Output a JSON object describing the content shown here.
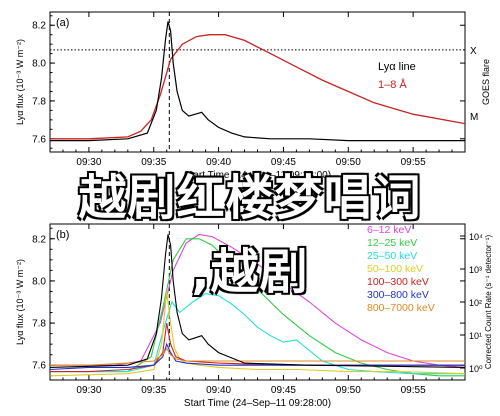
{
  "chart_data": [
    {
      "type": "line",
      "panel_label": "(a)",
      "ylabel": "Lyα flux (10⁻³ W m⁻²)",
      "y2label": "GOES flare",
      "y2_ticks": [
        "X",
        "M"
      ],
      "xlabel": "Start Time (24–Sep–11 09:28:00)",
      "xticks": [
        "09:30",
        "09:35",
        "09:40",
        "09:45",
        "09:50",
        "09:55"
      ],
      "xlim_min": [
        27,
        59
      ],
      "yticks": [
        "7.6",
        "7.8",
        "8.0",
        "8.2"
      ],
      "ylim": [
        7.53,
        8.27
      ],
      "vline_min": 36.2,
      "hline_value": 8.07,
      "legend": [
        "Lyα line",
        "1–8 Å"
      ],
      "colors": {
        "lya": "#000000",
        "goes": "#cc2222"
      },
      "series": [
        {
          "name": "Lyα line",
          "x": [
            27,
            30,
            33,
            34.5,
            35.2,
            35.6,
            35.9,
            36.1,
            36.3,
            36.5,
            36.8,
            37.2,
            37.7,
            38.2,
            38.7,
            39.2,
            40,
            41,
            42,
            44,
            47,
            50,
            55,
            59
          ],
          "y": [
            7.59,
            7.59,
            7.6,
            7.63,
            7.75,
            7.92,
            8.12,
            8.22,
            8.17,
            8.0,
            7.85,
            7.75,
            7.72,
            7.73,
            7.74,
            7.7,
            7.66,
            7.63,
            7.61,
            7.6,
            7.6,
            7.59,
            7.59,
            7.59
          ]
        },
        {
          "name": "1–8 Å",
          "x": [
            27,
            30,
            33,
            34,
            34.8,
            35.5,
            36.3,
            37.2,
            38.3,
            39.3,
            40.5,
            42,
            44,
            46,
            48,
            50,
            52,
            55,
            59
          ],
          "y": [
            7.6,
            7.6,
            7.61,
            7.64,
            7.7,
            7.83,
            8.02,
            8.1,
            8.14,
            8.15,
            8.15,
            8.12,
            8.05,
            7.98,
            7.91,
            7.85,
            7.79,
            7.73,
            7.68
          ]
        }
      ]
    },
    {
      "type": "line",
      "panel_label": "(b)",
      "ylabel": "Lyα flux (10⁻³ W m⁻²)",
      "y2label": "Corrected Count Rate (s⁻¹ detector⁻¹)",
      "y2_ticks": [
        "10⁴",
        "10³",
        "10²",
        "10¹",
        "10⁰"
      ],
      "xlabel": "Start Time (24–Sep–11 09:28:00)",
      "xticks": [
        "09:30",
        "09:35",
        "09:40",
        "09:45",
        "09:50",
        "09:55"
      ],
      "xlim_min": [
        27,
        59
      ],
      "yticks": [
        "7.6",
        "7.8",
        "8.0",
        "8.2"
      ],
      "ylim": [
        7.53,
        8.27
      ],
      "vline_min": 36.2,
      "legend": [
        "6–12 keV",
        "12–25 keV",
        "25–50 keV",
        "50–100 keV",
        "100–300 keV",
        "300–800 keV",
        "800–7000 keV"
      ],
      "series": [
        {
          "name": "Lyα line",
          "color": "#000000",
          "x": [
            27,
            33,
            34.5,
            35.2,
            35.6,
            35.9,
            36.1,
            36.3,
            36.5,
            36.8,
            37.2,
            37.7,
            38.2,
            38.7,
            39.2,
            40,
            42,
            47,
            59
          ],
          "y": [
            7.59,
            7.6,
            7.63,
            7.75,
            7.92,
            8.12,
            8.22,
            8.17,
            8.0,
            7.85,
            7.75,
            7.72,
            7.73,
            7.74,
            7.7,
            7.66,
            7.61,
            7.6,
            7.59
          ]
        },
        {
          "name": "6–12 keV",
          "color": "#dd44dd",
          "x": [
            27,
            32,
            34,
            35.5,
            36.5,
            37.5,
            38.5,
            39.5,
            41,
            43,
            45,
            47,
            49,
            51,
            53,
            55,
            57,
            59
          ],
          "y": [
            7.6,
            7.6,
            7.62,
            7.8,
            8.05,
            8.18,
            8.22,
            8.21,
            8.16,
            8.08,
            7.99,
            7.9,
            7.8,
            7.72,
            7.66,
            7.62,
            7.6,
            7.59
          ]
        },
        {
          "name": "12–25 keV",
          "color": "#33cc44",
          "x": [
            27,
            33,
            34.8,
            35.8,
            36.5,
            37.5,
            38.5,
            39.5,
            41,
            43,
            45,
            47,
            49,
            51,
            53,
            55,
            57,
            59
          ],
          "y": [
            7.57,
            7.57,
            7.64,
            7.9,
            8.1,
            8.2,
            8.2,
            8.17,
            8.08,
            7.96,
            7.84,
            7.74,
            7.66,
            7.61,
            7.58,
            7.56,
            7.55,
            7.55
          ]
        },
        {
          "name": "25–50 keV",
          "color": "#22dddd",
          "x": [
            27,
            33,
            35,
            35.8,
            36.4,
            37,
            38,
            39,
            40,
            41,
            42,
            43,
            44,
            45,
            46,
            47,
            48,
            50,
            52,
            55,
            59
          ],
          "y": [
            7.57,
            7.57,
            7.6,
            7.78,
            7.9,
            7.85,
            7.9,
            7.94,
            7.93,
            7.89,
            7.84,
            7.78,
            7.74,
            7.71,
            7.72,
            7.67,
            7.62,
            7.58,
            7.57,
            7.56,
            7.56
          ]
        },
        {
          "name": "50–100 keV",
          "color": "#ddcc22",
          "x": [
            27,
            33,
            35,
            35.6,
            36,
            36.3,
            36.6,
            37,
            37.5,
            38.5,
            40,
            43,
            46,
            50,
            54,
            59
          ],
          "y": [
            7.55,
            7.56,
            7.58,
            7.7,
            7.95,
            7.8,
            7.68,
            7.63,
            7.61,
            7.6,
            7.59,
            7.58,
            7.58,
            7.57,
            7.57,
            7.56
          ]
        },
        {
          "name": "100–300 keV",
          "color": "#cc2222",
          "x": [
            27,
            30,
            33,
            35,
            35.7,
            36,
            36.3,
            36.7,
            37.5,
            40,
            45,
            50,
            55,
            59
          ],
          "y": [
            7.57,
            7.57,
            7.58,
            7.6,
            7.66,
            7.8,
            7.7,
            7.64,
            7.62,
            7.61,
            7.6,
            7.6,
            7.6,
            7.6
          ]
        },
        {
          "name": "300–800 keV",
          "color": "#2233cc",
          "x": [
            27,
            30,
            33,
            35,
            35.7,
            36,
            36.3,
            36.7,
            37.5,
            40,
            45,
            50,
            55,
            59
          ],
          "y": [
            7.58,
            7.59,
            7.59,
            7.6,
            7.64,
            7.7,
            7.66,
            7.62,
            7.61,
            7.6,
            7.6,
            7.6,
            7.6,
            7.6
          ]
        },
        {
          "name": "800–7000 keV",
          "color": "#dd8822",
          "x": [
            27,
            30,
            33,
            35,
            35.7,
            36,
            36.3,
            36.7,
            37.5,
            40,
            45,
            50,
            55,
            59
          ],
          "y": [
            7.6,
            7.6,
            7.61,
            7.62,
            7.65,
            7.68,
            7.65,
            7.63,
            7.62,
            7.62,
            7.62,
            7.62,
            7.62,
            7.62
          ]
        }
      ]
    }
  ],
  "overlay": {
    "line1": "越剧红楼梦唱词",
    "line2": ",越剧"
  }
}
